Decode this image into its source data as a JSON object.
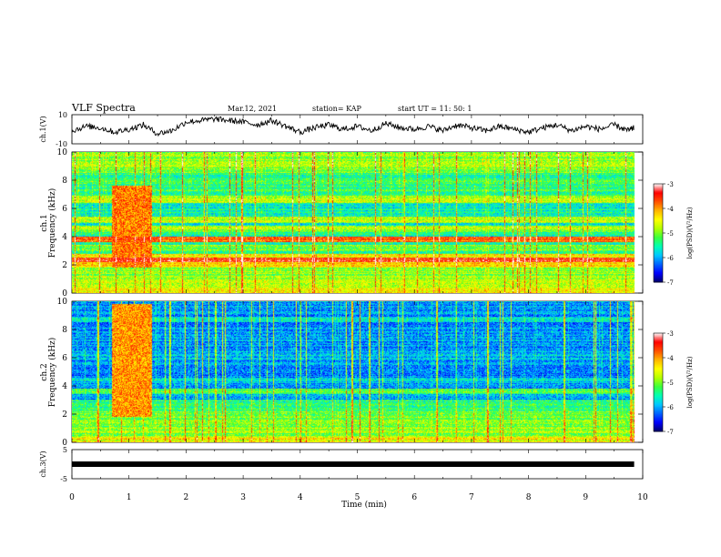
{
  "header": {
    "title": "VLF Spectra",
    "date": "Mar.12, 2021",
    "station": "station= KAP",
    "start": "start  UT =  11: 50: 1"
  },
  "colorbar": {
    "label": "log(PSD)(V²/Hz)",
    "ticks": [
      "-3",
      "-4",
      "-5",
      "-6",
      "-7"
    ],
    "range": [
      -7,
      -3
    ],
    "colors": [
      "#00006a",
      "#0000ff",
      "#0064ff",
      "#00c8ff",
      "#00ffb4",
      "#3cff3c",
      "#b4ff00",
      "#ffff00",
      "#ffb400",
      "#ff5000",
      "#ff0000",
      "#ffffff"
    ]
  },
  "xaxis": {
    "label": "Time (min)",
    "ticks": [
      "0",
      "1",
      "2",
      "3",
      "4",
      "5",
      "6",
      "7",
      "8",
      "9",
      "10"
    ]
  },
  "chart_data": [
    {
      "type": "line",
      "panel": "waveform_ch1",
      "ylabel": "ch.1(V)",
      "ylim": [
        -10,
        10
      ],
      "yticks": [
        "10",
        "-10"
      ],
      "xlim": [
        0,
        10
      ],
      "x": [
        0,
        0.25,
        0.5,
        0.75,
        1.0,
        1.25,
        1.5,
        1.75,
        2.0,
        2.25,
        2.5,
        2.75,
        3.0,
        3.25,
        3.5,
        3.75,
        4.0,
        4.25,
        4.5,
        4.75,
        5.0,
        5.25,
        5.5,
        5.75,
        6.0,
        6.25,
        6.5,
        6.75,
        7.0,
        7.25,
        7.5,
        7.75,
        8.0,
        8.25,
        8.5,
        8.75,
        9.0,
        9.25,
        9.5,
        9.75,
        9.85
      ],
      "y": [
        -1,
        2,
        1,
        -2,
        0,
        3,
        -3,
        -1,
        5,
        6,
        7,
        6,
        5,
        3,
        6,
        2,
        -2,
        1,
        3,
        0,
        2,
        -1,
        4,
        1,
        0,
        2,
        -1,
        3,
        1,
        -1,
        2,
        0,
        -2,
        1,
        3,
        -1,
        2,
        0,
        3,
        -1,
        1
      ]
    },
    {
      "type": "heatmap",
      "panel": "spectrogram_ch1",
      "ylabel": "ch.1\nFrequency (kHz)",
      "ylim": [
        0,
        10
      ],
      "yticks": [
        "0",
        "2",
        "4",
        "6",
        "8",
        "10"
      ],
      "xlim": [
        0,
        9.85
      ],
      "zlim": [
        -7,
        -3
      ],
      "background_level": -5.6,
      "bands": [
        {
          "f_low": 0,
          "f_high": 0.4,
          "level": -4.4
        },
        {
          "f_low": 0.4,
          "f_high": 1.8,
          "level": -4.9
        },
        {
          "f_low": 1.8,
          "f_high": 2.8,
          "level": -4.3
        },
        {
          "f_low": 2.2,
          "f_high": 2.5,
          "level": -3.4
        },
        {
          "f_low": 3.0,
          "f_high": 3.4,
          "level": -5.0
        },
        {
          "f_low": 3.6,
          "f_high": 4.0,
          "level": -3.8
        },
        {
          "f_low": 4.3,
          "f_high": 4.8,
          "level": -4.9
        },
        {
          "f_low": 5.0,
          "f_high": 5.4,
          "level": -4.8
        },
        {
          "f_low": 6.4,
          "f_high": 6.9,
          "level": -4.8
        },
        {
          "f_low": 7.0,
          "f_high": 8.5,
          "level": -5.3
        },
        {
          "f_low": 8.5,
          "f_high": 10,
          "level": -4.9
        }
      ],
      "bursts": [
        {
          "t_start": 0.7,
          "t_end": 1.4,
          "f_low": 1.8,
          "f_high": 7.6,
          "level": -3.9
        }
      ]
    },
    {
      "type": "heatmap",
      "panel": "spectrogram_ch2",
      "ylabel": "ch.2\nFrequency (kHz)",
      "ylim": [
        0,
        10
      ],
      "yticks": [
        "0",
        "2",
        "4",
        "6",
        "8",
        "10"
      ],
      "xlim": [
        0,
        9.85
      ],
      "zlim": [
        -7,
        -3
      ],
      "background_level": -6.1,
      "bands": [
        {
          "f_low": 0,
          "f_high": 0.4,
          "level": -4.5
        },
        {
          "f_low": 0.4,
          "f_high": 2.2,
          "level": -5.0
        },
        {
          "f_low": 2.2,
          "f_high": 3.0,
          "level": -5.4
        },
        {
          "f_low": 3.4,
          "f_high": 3.8,
          "level": -5.2
        },
        {
          "f_low": 4.2,
          "f_high": 4.6,
          "level": -5.8
        },
        {
          "f_low": 5.8,
          "f_high": 6.2,
          "level": -5.9
        },
        {
          "f_low": 8.5,
          "f_high": 8.9,
          "level": -5.7
        }
      ],
      "bursts": [
        {
          "t_start": 0.7,
          "t_end": 1.4,
          "f_low": 1.8,
          "f_high": 9.8,
          "level": -4.0
        }
      ]
    },
    {
      "type": "line",
      "panel": "waveform_ch3",
      "ylabel": "ch.3(V)",
      "ylim": [
        -5,
        5
      ],
      "yticks": [
        "5",
        "-5"
      ],
      "xlim": [
        0,
        10
      ],
      "x": [
        0,
        9.85
      ],
      "y": [
        0,
        0
      ]
    }
  ]
}
